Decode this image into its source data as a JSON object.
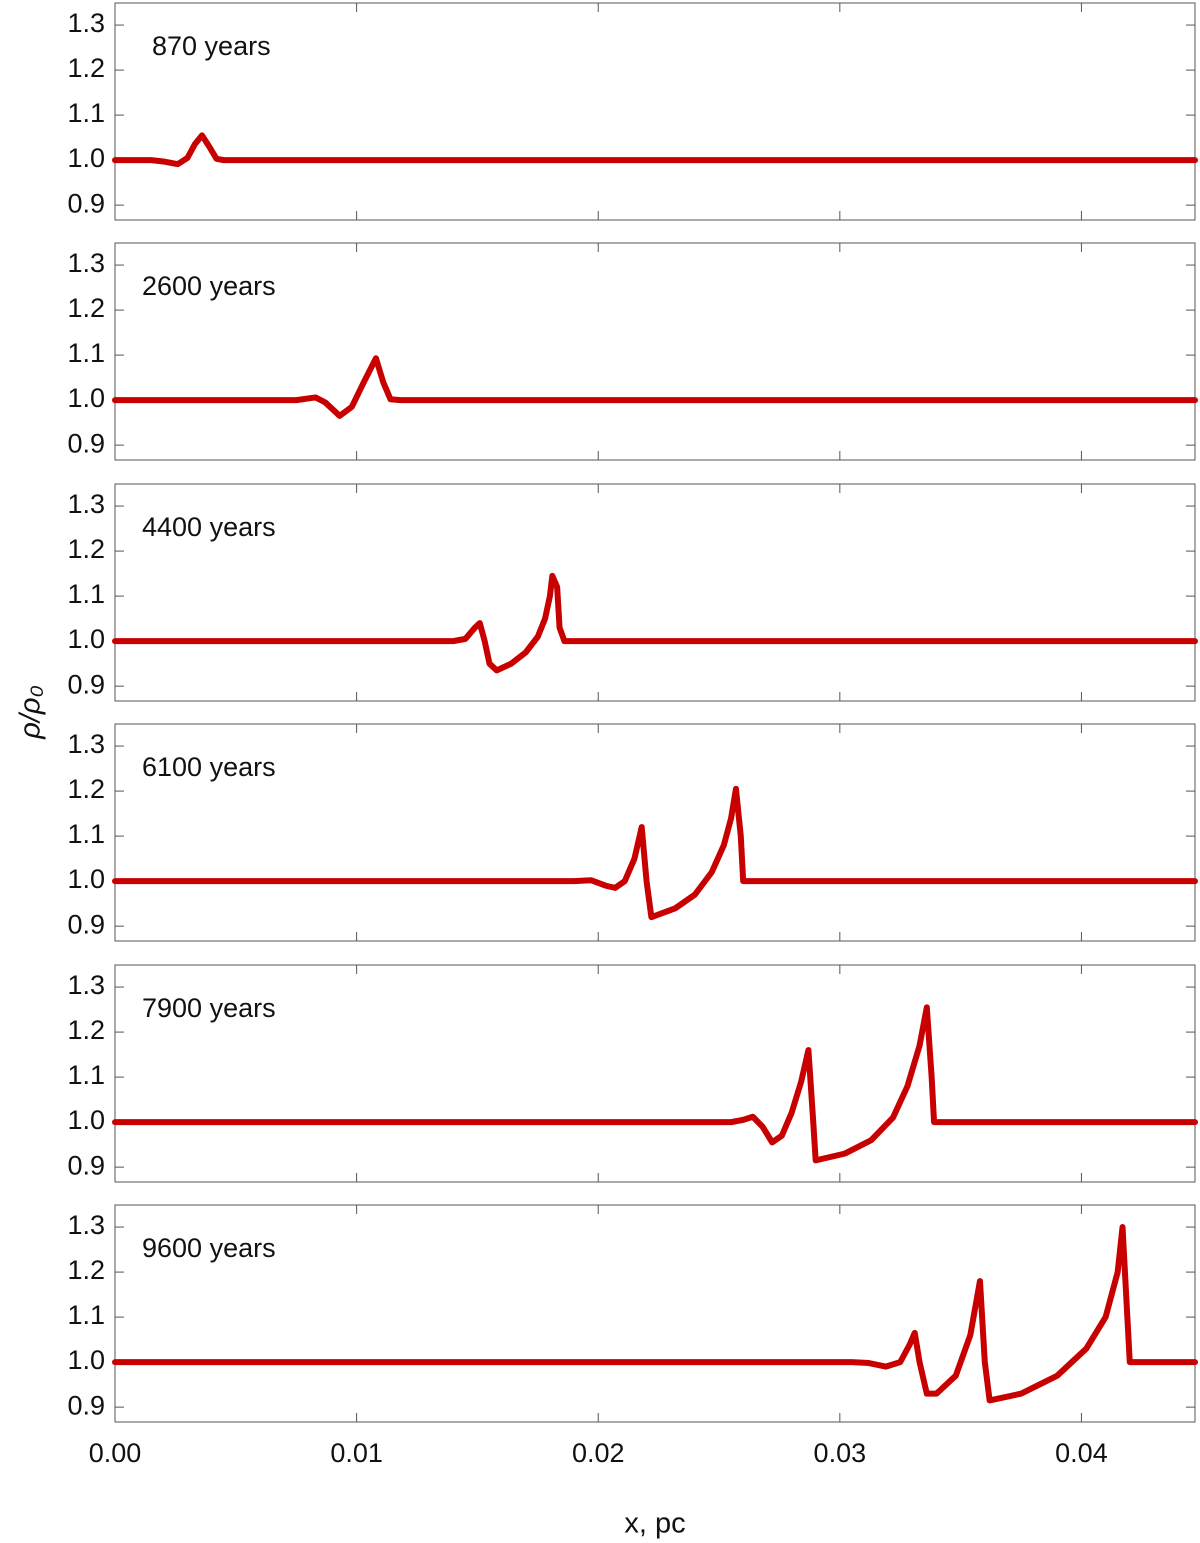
{
  "chart_data": [
    {
      "type": "line",
      "annotation": "870 years",
      "color": "#c80000",
      "x": [
        0,
        0.0015,
        0.002,
        0.0026,
        0.003,
        0.0033,
        0.0036,
        0.0039,
        0.0042,
        0.0045,
        0.0447
      ],
      "values": [
        1.0,
        1.0,
        0.997,
        0.991,
        1.005,
        1.035,
        1.055,
        1.03,
        1.003,
        1.0,
        1.0
      ],
      "xlim": [
        0,
        0.0447
      ],
      "ylim": [
        0.867,
        1.349
      ],
      "yticks": [
        0.9,
        {
          "value": 1,
          "label": "1.0"
        },
        1.1,
        1.2,
        1.3
      ]
    },
    {
      "type": "line",
      "annotation": "2600 years",
      "color": "#c80000",
      "x": [
        0,
        0.0075,
        0.0083,
        0.0087,
        0.0093,
        0.0098,
        0.0103,
        0.0108,
        0.0111,
        0.0114,
        0.0118,
        0.0447
      ],
      "values": [
        1.0,
        1.0,
        1.006,
        0.995,
        0.965,
        0.985,
        1.04,
        1.093,
        1.04,
        1.002,
        1.0,
        1.0
      ],
      "xlim": [
        0,
        0.0447
      ],
      "ylim": [
        0.867,
        1.349
      ],
      "yticks": [
        0.9,
        {
          "value": 1,
          "label": "1.0"
        },
        1.1,
        1.2,
        1.3
      ]
    },
    {
      "type": "line",
      "annotation": "4400 years",
      "color": "#c80000",
      "x": [
        0,
        0.014,
        0.0145,
        0.0149,
        0.0151,
        0.0153,
        0.0155,
        0.0158,
        0.0164,
        0.017,
        0.0175,
        0.0178,
        0.018,
        0.0181,
        0.0183,
        0.0184,
        0.0186,
        0.0447
      ],
      "values": [
        1.0,
        1.0,
        1.005,
        1.03,
        1.04,
        1.0,
        0.95,
        0.935,
        0.95,
        0.975,
        1.01,
        1.05,
        1.1,
        1.145,
        1.12,
        1.03,
        1.0,
        1.0
      ],
      "xlim": [
        0,
        0.0447
      ],
      "ylim": [
        0.867,
        1.349
      ],
      "yticks": [
        0.9,
        {
          "value": 1,
          "label": "1.0"
        },
        1.1,
        1.2,
        1.3
      ]
    },
    {
      "type": "line",
      "annotation": "6100 years",
      "color": "#c80000",
      "ylabel": "ρ/ρ₀",
      "x": [
        0,
        0.019,
        0.0197,
        0.0203,
        0.0207,
        0.0211,
        0.0215,
        0.0218,
        0.022,
        0.0222,
        0.0232,
        0.024,
        0.0247,
        0.0252,
        0.0255,
        0.0257,
        0.0259,
        0.026,
        0.0447
      ],
      "values": [
        1.0,
        1.0,
        1.002,
        0.99,
        0.985,
        1.0,
        1.05,
        1.12,
        1.0,
        0.92,
        0.94,
        0.97,
        1.02,
        1.08,
        1.14,
        1.205,
        1.1,
        1.0,
        1.0
      ],
      "xlim": [
        0,
        0.0447
      ],
      "ylim": [
        0.867,
        1.349
      ],
      "yticks": [
        0.9,
        {
          "value": 1,
          "label": "1.0"
        },
        1.1,
        1.2,
        1.3
      ]
    },
    {
      "type": "line",
      "annotation": "7900 years",
      "color": "#c80000",
      "x": [
        0,
        0.0255,
        0.026,
        0.0264,
        0.0268,
        0.0272,
        0.0276,
        0.028,
        0.0284,
        0.0287,
        0.0289,
        0.029,
        0.0302,
        0.0313,
        0.0322,
        0.0328,
        0.0333,
        0.0336,
        0.0338,
        0.0339,
        0.0447
      ],
      "values": [
        1.0,
        1.0,
        1.005,
        1.012,
        0.99,
        0.955,
        0.97,
        1.02,
        1.09,
        1.16,
        1.0,
        0.915,
        0.93,
        0.96,
        1.01,
        1.08,
        1.17,
        1.255,
        1.1,
        1.0,
        1.0
      ],
      "xlim": [
        0,
        0.0447
      ],
      "ylim": [
        0.867,
        1.349
      ],
      "yticks": [
        0.9,
        {
          "value": 1,
          "label": "1.0"
        },
        1.1,
        1.2,
        1.3
      ]
    },
    {
      "type": "line",
      "annotation": "9600 years",
      "color": "#c80000",
      "xlabel": "x, pc",
      "x": [
        0,
        0.0305,
        0.0312,
        0.0319,
        0.0325,
        0.0329,
        0.0331,
        0.0333,
        0.0336,
        0.034,
        0.0348,
        0.0354,
        0.0358,
        0.036,
        0.0362,
        0.0375,
        0.039,
        0.0402,
        0.041,
        0.0415,
        0.0417,
        0.0419,
        0.042,
        0.0447
      ],
      "values": [
        1.0,
        1.0,
        0.998,
        0.99,
        1.0,
        1.04,
        1.065,
        1.0,
        0.93,
        0.93,
        0.97,
        1.06,
        1.18,
        1.0,
        0.915,
        0.93,
        0.97,
        1.03,
        1.1,
        1.2,
        1.3,
        1.1,
        1.0,
        1.0
      ],
      "xlim": [
        0,
        0.0447
      ],
      "ylim": [
        0.867,
        1.349
      ],
      "xticks": [
        {
          "value": 0,
          "label": "0.00"
        },
        0.01,
        0.02,
        0.03,
        0.04
      ],
      "yticks": [
        0.9,
        {
          "value": 1,
          "label": "1.0"
        },
        1.1,
        1.2,
        1.3
      ]
    }
  ]
}
